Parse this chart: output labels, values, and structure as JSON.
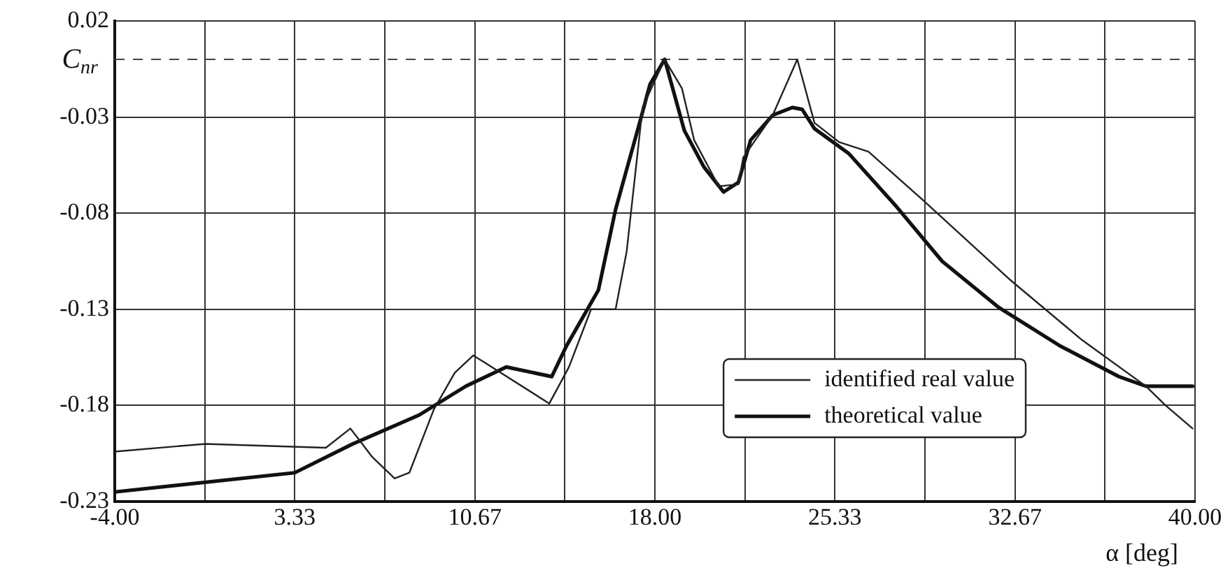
{
  "chart_data": {
    "type": "line",
    "xlabel": "α [deg]",
    "ylabel": "C$_{nr}$",
    "xlim": [
      -4,
      40
    ],
    "ylim": [
      -0.23,
      0.02
    ],
    "xticks": [
      {
        "value": -4,
        "label": "-4.00"
      },
      {
        "value": -0.33,
        "label": null
      },
      {
        "value": 3.33,
        "label": "3.33"
      },
      {
        "value": 7,
        "label": null
      },
      {
        "value": 10.67,
        "label": "10.67"
      },
      {
        "value": 14.33,
        "label": null
      },
      {
        "value": 18,
        "label": "18.00"
      },
      {
        "value": 21.67,
        "label": null
      },
      {
        "value": 25.33,
        "label": "25.33"
      },
      {
        "value": 29,
        "label": null
      },
      {
        "value": 32.67,
        "label": "32.67"
      },
      {
        "value": 36.33,
        "label": null
      },
      {
        "value": 40,
        "label": "40.00"
      }
    ],
    "yticks": [
      0.02,
      -0.03,
      -0.08,
      -0.13,
      -0.18,
      -0.23
    ],
    "grid": true,
    "legend": "bottom right",
    "marker": "none",
    "line_style": "solid",
    "ref_lines": [
      {
        "axis": "y",
        "value": 0,
        "line_style": "dashed",
        "color": "#444444"
      }
    ],
    "series": [
      {
        "name": "identified real value",
        "color": "#222222",
        "x": [
          -4,
          -0.3,
          4.6,
          5.6,
          6.5,
          7.4,
          8,
          9,
          9.85,
          10.6,
          11.1,
          13.7,
          14.5,
          15.4,
          16.4,
          16.85,
          17.5,
          18.4,
          19.1,
          19.6,
          20.6,
          21.4,
          21.6,
          22.8,
          23.8,
          24.5,
          25.5,
          26.7,
          28.9,
          32.5,
          35.4,
          38,
          38.8,
          39.9
        ],
        "values": [
          -0.204,
          -0.2,
          -0.202,
          -0.192,
          -0.207,
          -0.218,
          -0.215,
          -0.182,
          -0.163,
          -0.154,
          -0.158,
          -0.179,
          -0.16,
          -0.13,
          -0.13,
          -0.1,
          -0.025,
          0,
          -0.015,
          -0.042,
          -0.066,
          -0.065,
          -0.051,
          -0.029,
          0,
          -0.033,
          -0.043,
          -0.048,
          -0.073,
          -0.115,
          -0.146,
          -0.17,
          -0.18,
          -0.192
        ]
      },
      {
        "name": "theoretical value",
        "color": "#111111",
        "x": [
          -4,
          3.33,
          5.7,
          8.4,
          10.3,
          11.95,
          13.8,
          14.4,
          15.7,
          16.4,
          17.4,
          17.8,
          18.4,
          19.2,
          20,
          20.8,
          21.4,
          21.9,
          22.8,
          23.6,
          24,
          24.5,
          25.9,
          27.8,
          29.7,
          32,
          34.5,
          36.9,
          38,
          39.9
        ],
        "values": [
          -0.225,
          -0.215,
          -0.2,
          -0.185,
          -0.17,
          -0.16,
          -0.165,
          -0.149,
          -0.12,
          -0.078,
          -0.032,
          -0.013,
          0,
          -0.037,
          -0.056,
          -0.069,
          -0.064,
          -0.042,
          -0.029,
          -0.025,
          -0.026,
          -0.036,
          -0.049,
          -0.076,
          -0.105,
          -0.129,
          -0.149,
          -0.165,
          -0.17,
          -0.17
        ]
      }
    ]
  }
}
